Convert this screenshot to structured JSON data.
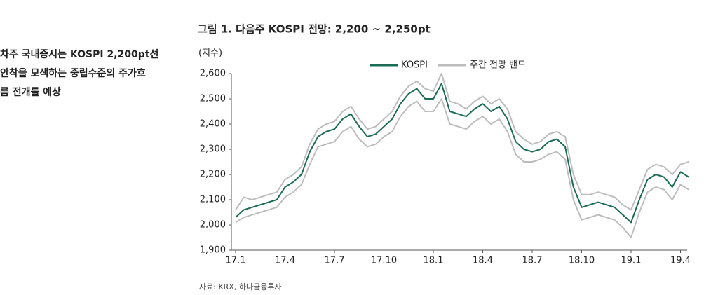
{
  "sidebar": {
    "text": [
      "차주 국내증시는 KOSPI 2,200pt선",
      "안착을 모색하는 중립수준의 주가흐",
      "름 전개를 예상"
    ]
  },
  "chart_data": {
    "type": "line",
    "title": "그림 1. 다음주 KOSPI 전망: 2,200 ~ 2,250pt",
    "y_label": "(지수)",
    "source": "자료: KRX, 하나금융투자",
    "x": [
      0,
      0.5,
      1,
      1.5,
      2,
      2.5,
      3,
      3.5,
      4,
      4.5,
      5,
      5.5,
      6,
      6.5,
      7,
      7.5,
      8,
      8.5,
      9,
      9.5,
      10,
      10.5,
      11,
      11.5,
      12,
      12.5,
      13,
      13.5,
      14,
      14.5,
      15,
      15.5,
      16,
      16.5,
      17,
      17.5,
      18,
      18.5,
      19,
      19.5,
      20,
      20.5,
      21,
      21.5,
      22,
      22.5,
      23,
      23.5,
      24,
      24.5,
      25,
      25.5,
      26,
      26.5,
      27,
      27.5
    ],
    "series": [
      {
        "name": "KOSPI",
        "color": "#1b6b58",
        "values": [
          2030,
          2060,
          2070,
          2080,
          2090,
          2100,
          2150,
          2170,
          2200,
          2290,
          2350,
          2370,
          2380,
          2420,
          2440,
          2390,
          2350,
          2360,
          2390,
          2420,
          2480,
          2520,
          2540,
          2500,
          2500,
          2560,
          2450,
          2440,
          2430,
          2460,
          2480,
          2450,
          2470,
          2420,
          2330,
          2300,
          2290,
          2300,
          2330,
          2340,
          2310,
          2150,
          2070,
          2080,
          2090,
          2080,
          2070,
          2040,
          2010,
          2100,
          2180,
          2200,
          2190,
          2150,
          2210,
          2190
        ]
      },
      {
        "name": "주간 전망 밴드",
        "color": "#bdbdbd",
        "high": [
          2060,
          2110,
          2100,
          2110,
          2120,
          2130,
          2180,
          2200,
          2230,
          2320,
          2380,
          2400,
          2410,
          2450,
          2470,
          2420,
          2380,
          2390,
          2420,
          2450,
          2510,
          2550,
          2570,
          2540,
          2530,
          2600,
          2490,
          2480,
          2460,
          2490,
          2510,
          2480,
          2500,
          2460,
          2370,
          2340,
          2320,
          2330,
          2360,
          2370,
          2350,
          2200,
          2120,
          2120,
          2130,
          2120,
          2110,
          2080,
          2060,
          2140,
          2220,
          2240,
          2230,
          2200,
          2240,
          2250
        ],
        "low": [
          2010,
          2030,
          2040,
          2050,
          2060,
          2070,
          2110,
          2130,
          2160,
          2240,
          2310,
          2320,
          2330,
          2370,
          2390,
          2340,
          2310,
          2320,
          2350,
          2370,
          2430,
          2470,
          2490,
          2450,
          2450,
          2500,
          2400,
          2390,
          2380,
          2410,
          2430,
          2400,
          2420,
          2370,
          2280,
          2250,
          2250,
          2260,
          2280,
          2290,
          2260,
          2100,
          2020,
          2030,
          2040,
          2030,
          2020,
          1990,
          1950,
          2050,
          2130,
          2150,
          2140,
          2100,
          2160,
          2140
        ]
      }
    ],
    "xlim": [
      0,
      28
    ],
    "xticks": [
      {
        "value": 0,
        "label": "17.1"
      },
      {
        "value": 3,
        "label": "17.4"
      },
      {
        "value": 6,
        "label": "17.7"
      },
      {
        "value": 9,
        "label": "17.10"
      },
      {
        "value": 12,
        "label": "18.1"
      },
      {
        "value": 15,
        "label": "18.4"
      },
      {
        "value": 18,
        "label": "18.7"
      },
      {
        "value": 21,
        "label": "18.10"
      },
      {
        "value": 24,
        "label": "19.1"
      },
      {
        "value": 27,
        "label": "19.4"
      }
    ],
    "ylim": [
      1900,
      2600
    ],
    "yticks": [
      {
        "value": 1900,
        "label": "1,900"
      },
      {
        "value": 2000,
        "label": "2,000"
      },
      {
        "value": 2100,
        "label": "2,100"
      },
      {
        "value": 2200,
        "label": "2,200"
      },
      {
        "value": 2300,
        "label": "2,300"
      },
      {
        "value": 2400,
        "label": "2,400"
      },
      {
        "value": 2500,
        "label": "2,500"
      },
      {
        "value": 2600,
        "label": "2,600"
      }
    ]
  }
}
